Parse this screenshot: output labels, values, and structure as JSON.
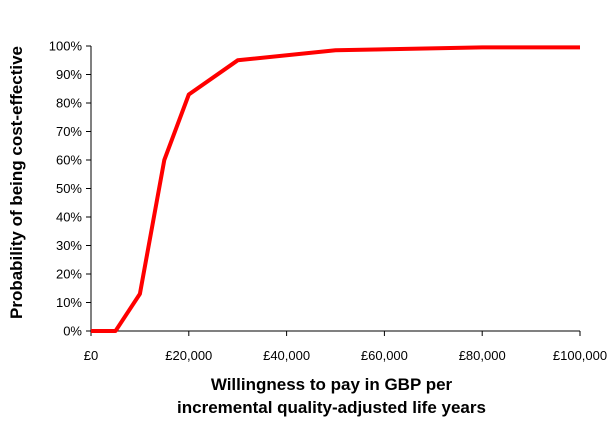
{
  "chart_data": {
    "type": "line",
    "xlabel_lines": [
      "Willingness to pay in GBP per",
      "incremental quality-adjusted life years"
    ],
    "ylabel": "Probability of being cost-effective",
    "xlim": [
      0,
      100000
    ],
    "ylim": [
      0,
      100
    ],
    "x_ticks": [
      0,
      20000,
      40000,
      60000,
      80000,
      100000
    ],
    "x_tick_labels": [
      "£0",
      "£20,000",
      "£40,000",
      "£60,000",
      "£80,000",
      "£100,000"
    ],
    "y_ticks": [
      0,
      10,
      20,
      30,
      40,
      50,
      60,
      70,
      80,
      90,
      100
    ],
    "y_tick_labels": [
      "0%",
      "10%",
      "20%",
      "30%",
      "40%",
      "50%",
      "60%",
      "70%",
      "80%",
      "90%",
      "100%"
    ],
    "grid": false,
    "legend": "none",
    "series": [
      {
        "color": "#ff0000",
        "x": [
          0,
          5000,
          10000,
          15000,
          20000,
          30000,
          50000,
          80000,
          100000
        ],
        "y": [
          0,
          0,
          13,
          60,
          83,
          95,
          98.5,
          99.5,
          99.5
        ]
      }
    ]
  }
}
